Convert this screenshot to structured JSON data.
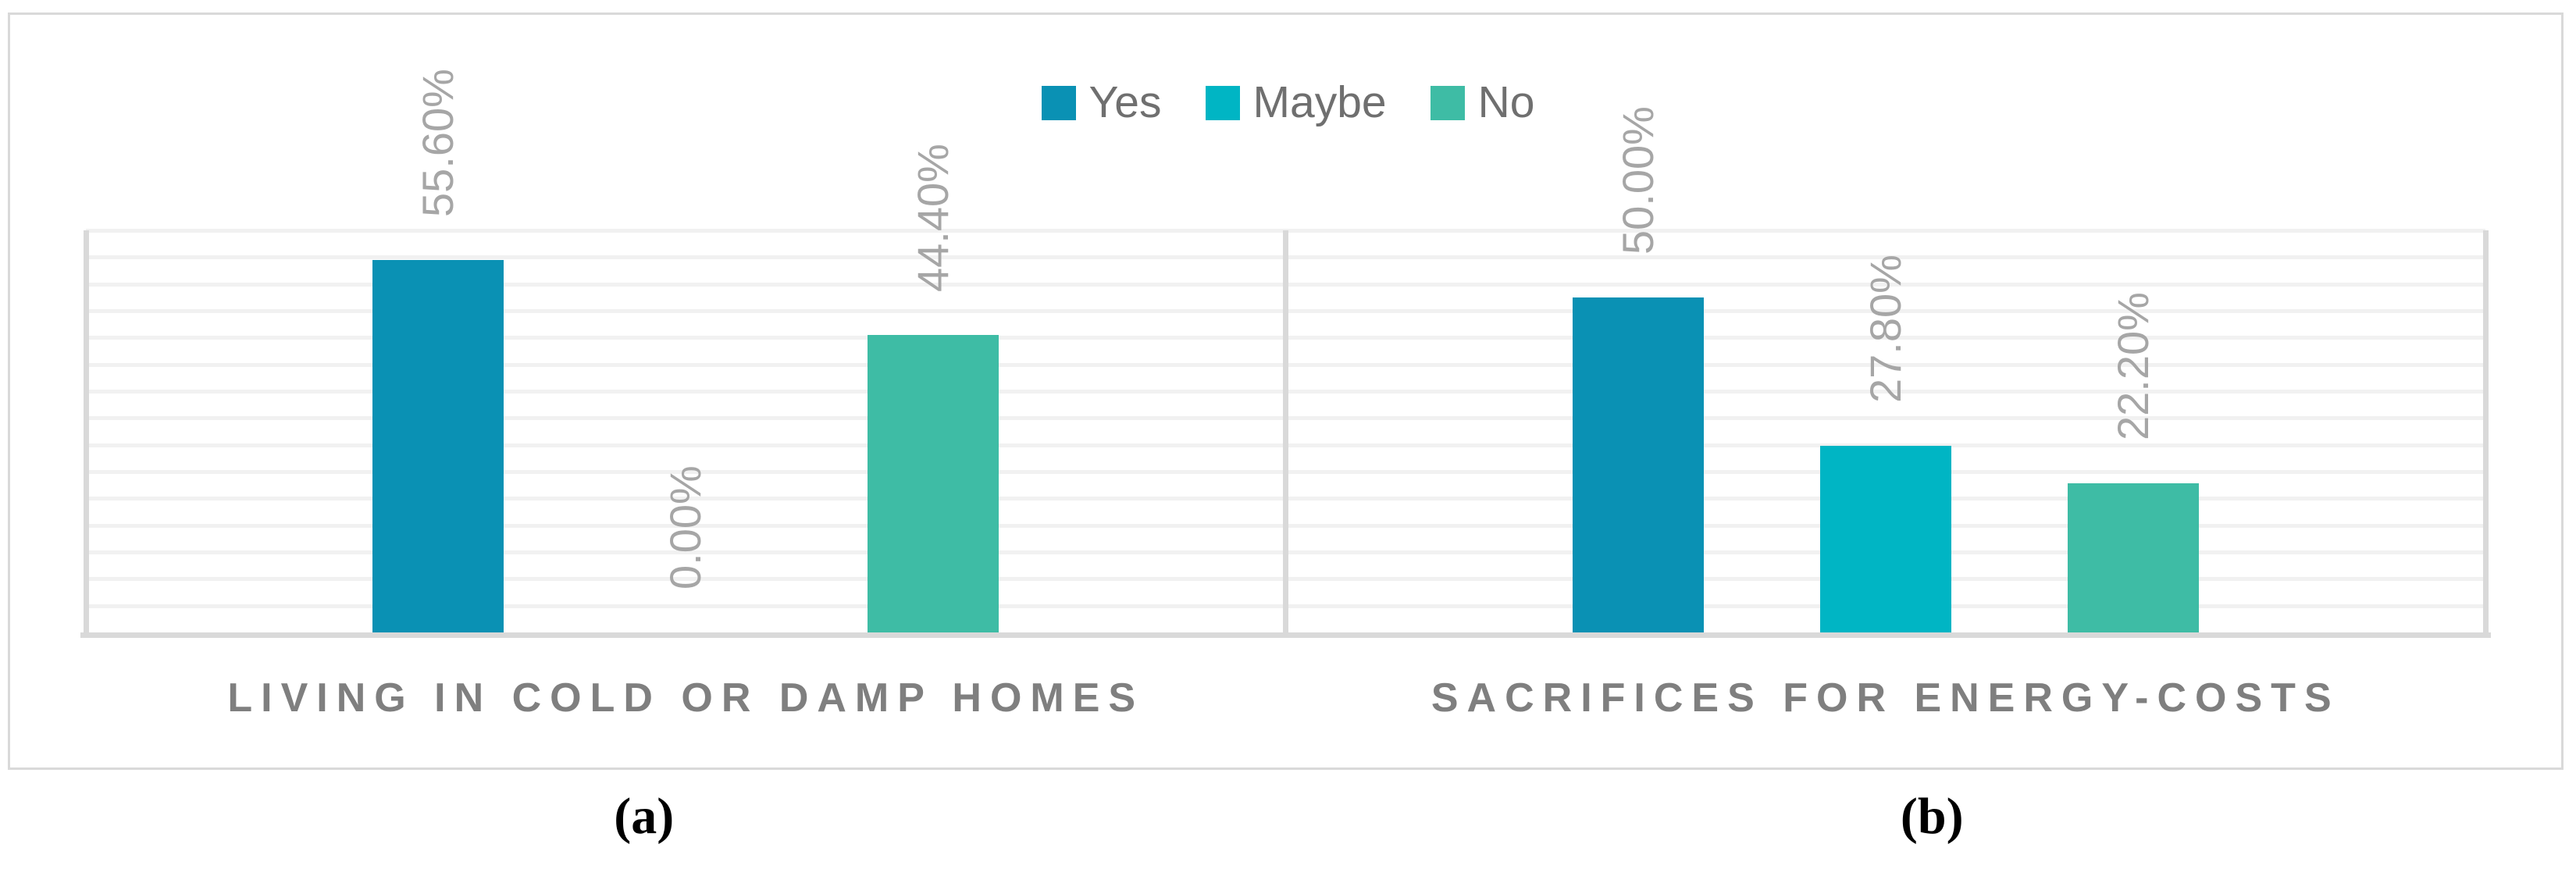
{
  "chart_data": {
    "type": "bar",
    "title": "",
    "legend_position": "top",
    "grid": true,
    "ylim": [
      0,
      60
    ],
    "gridline_step_percent": 4,
    "y_axis_tick_labels_visible": false,
    "legend": [
      {
        "name": "Yes",
        "color": "#0a91b4"
      },
      {
        "name": "Maybe",
        "color": "#00b5c4"
      },
      {
        "name": "No",
        "color": "#3ebca5"
      }
    ],
    "categories": [
      "LIVING IN COLD OR DAMP HOMES",
      "SACRIFICES FOR ENERGY-COSTS"
    ],
    "series": [
      {
        "name": "Yes",
        "values": [
          55.6,
          50.0
        ]
      },
      {
        "name": "Maybe",
        "values": [
          0.0,
          27.8
        ]
      },
      {
        "name": "No",
        "values": [
          44.4,
          22.2
        ]
      }
    ],
    "groups": [
      {
        "label": "LIVING IN COLD OR DAMP HOMES",
        "sublabel": "(a)",
        "values": [
          55.6,
          0.0,
          44.4
        ],
        "value_labels": [
          "55.60%",
          "0.00%",
          "44.40%"
        ]
      },
      {
        "label": "SACRIFICES FOR ENERGY-COSTS",
        "sublabel": "(b)",
        "values": [
          50.0,
          27.8,
          22.2
        ],
        "value_labels": [
          "50.00%",
          "27.80%",
          "22.20%"
        ]
      }
    ],
    "colors": {
      "value_label_text": "#a6a6a6",
      "category_label_text": "#7f7f7f",
      "legend_text": "#6f6f6f",
      "gridline": "#f1f1f1",
      "axis_line": "#d9d9d9",
      "figure_border": "#d9d9d9",
      "background": "#ffffff"
    }
  }
}
